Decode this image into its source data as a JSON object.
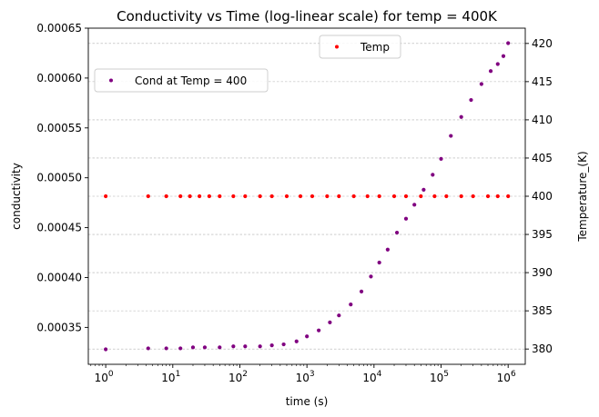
{
  "chart_data": {
    "type": "scatter",
    "title": "Conductivity vs Time (log-linear scale) for temp = 400K",
    "xlabel": "time (s)",
    "ylabel_left": "conductivity",
    "ylabel_right": "Temperature_(K)",
    "x_scale": "log",
    "xlim": [
      0.55,
      1800000
    ],
    "ylim_left": [
      0.000313,
      0.00065
    ],
    "ylim_right": [
      378,
      422
    ],
    "x_ticks": [
      {
        "base": "10",
        "exp": "0",
        "value": 1
      },
      {
        "base": "10",
        "exp": "1",
        "value": 10
      },
      {
        "base": "10",
        "exp": "2",
        "value": 100
      },
      {
        "base": "10",
        "exp": "3",
        "value": 1000
      },
      {
        "base": "10",
        "exp": "4",
        "value": 10000
      },
      {
        "base": "10",
        "exp": "5",
        "value": 100000
      },
      {
        "base": "10",
        "exp": "6",
        "value": 1000000
      }
    ],
    "y_ticks_left": [
      {
        "label": "0.00035",
        "value": 0.00035
      },
      {
        "label": "0.00040",
        "value": 0.0004
      },
      {
        "label": "0.00045",
        "value": 0.00045
      },
      {
        "label": "0.00050",
        "value": 0.0005
      },
      {
        "label": "0.00055",
        "value": 0.00055
      },
      {
        "label": "0.00060",
        "value": 0.0006
      },
      {
        "label": "0.00065",
        "value": 0.00065
      }
    ],
    "y_ticks_right": [
      {
        "label": "380",
        "value": 380
      },
      {
        "label": "385",
        "value": 385
      },
      {
        "label": "390",
        "value": 390
      },
      {
        "label": "395",
        "value": 395
      },
      {
        "label": "400",
        "value": 400
      },
      {
        "label": "405",
        "value": 405
      },
      {
        "label": "410",
        "value": 410
      },
      {
        "label": "415",
        "value": 415
      },
      {
        "label": "420",
        "value": 420
      }
    ],
    "grid": "horizontal dashed on right axis",
    "series": [
      {
        "name": "Cond at Temp = 400",
        "axis": "left",
        "color": "#800080",
        "legend_position": "upper-left",
        "points": [
          [
            1,
            0.000328
          ],
          [
            4.3,
            0.000329
          ],
          [
            8,
            0.000329
          ],
          [
            13,
            0.000329
          ],
          [
            20,
            0.00033
          ],
          [
            30,
            0.00033
          ],
          [
            50,
            0.00033
          ],
          [
            80,
            0.000331
          ],
          [
            120,
            0.000331
          ],
          [
            200,
            0.000331
          ],
          [
            300,
            0.000332
          ],
          [
            450,
            0.000333
          ],
          [
            700,
            0.000336
          ],
          [
            1000,
            0.000341
          ],
          [
            1500,
            0.000347
          ],
          [
            2200,
            0.000355
          ],
          [
            3000,
            0.000362
          ],
          [
            4500,
            0.000373
          ],
          [
            6500,
            0.000386
          ],
          [
            9000,
            0.000401
          ],
          [
            12000,
            0.000415
          ],
          [
            16000,
            0.000428
          ],
          [
            22000,
            0.000445
          ],
          [
            30000,
            0.000459
          ],
          [
            40000,
            0.000473
          ],
          [
            55000,
            0.000488
          ],
          [
            75000,
            0.000503
          ],
          [
            100000,
            0.000519
          ],
          [
            140000,
            0.000542
          ],
          [
            200000,
            0.000561
          ],
          [
            280000,
            0.000578
          ],
          [
            400000,
            0.000594
          ],
          [
            550000,
            0.000607
          ],
          [
            700000,
            0.000614
          ],
          [
            850000,
            0.000622
          ],
          [
            1000000,
            0.000635
          ]
        ]
      },
      {
        "name": "Temp",
        "axis": "right",
        "color": "#ff0000",
        "legend_position": "upper-center",
        "constant_value": 400,
        "points": [
          [
            1,
            400
          ],
          [
            4.3,
            400
          ],
          [
            8,
            400
          ],
          [
            13,
            400
          ],
          [
            18,
            400
          ],
          [
            25,
            400
          ],
          [
            35,
            400
          ],
          [
            50,
            400
          ],
          [
            80,
            400
          ],
          [
            120,
            400
          ],
          [
            200,
            400
          ],
          [
            300,
            400
          ],
          [
            500,
            400
          ],
          [
            800,
            400
          ],
          [
            1200,
            400
          ],
          [
            2000,
            400
          ],
          [
            3000,
            400
          ],
          [
            5000,
            400
          ],
          [
            8000,
            400
          ],
          [
            12000,
            400
          ],
          [
            20000,
            400
          ],
          [
            30000,
            400
          ],
          [
            50000,
            400
          ],
          [
            80000,
            400
          ],
          [
            120000,
            400
          ],
          [
            200000,
            400
          ],
          [
            300000,
            400
          ],
          [
            500000,
            400
          ],
          [
            700000,
            400
          ],
          [
            1000000,
            400
          ]
        ]
      }
    ]
  }
}
